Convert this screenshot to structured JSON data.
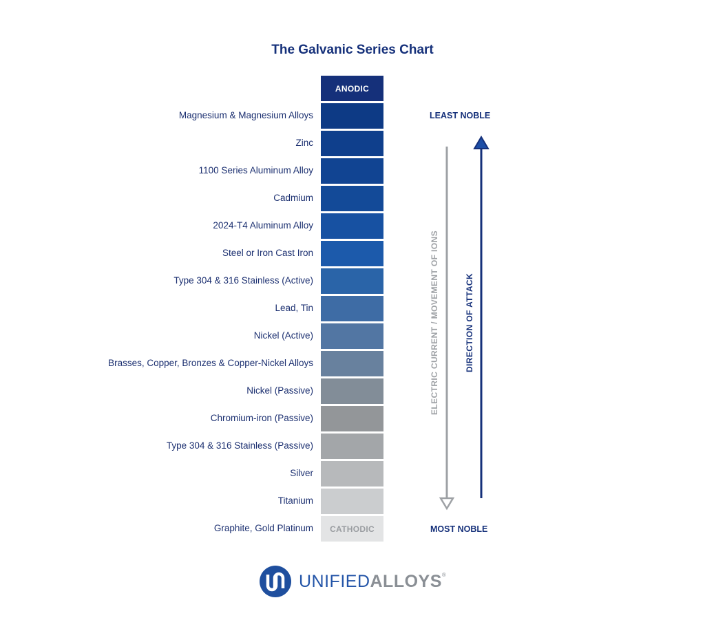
{
  "title": "The Galvanic Series Chart",
  "anodic_label": "ANODIC",
  "cathodic_label": "CATHODIC",
  "least_noble": "LEAST NOBLE",
  "most_noble": "MOST NOBLE",
  "current_label": "ELECTRIC CURRENT / MOVEMENT OF IONS",
  "attack_label": "DIRECTION OF ATTACK",
  "metals": [
    {
      "name": "Magnesium & Magnesium Alloys",
      "color": "#0d3a85"
    },
    {
      "name": "Zinc",
      "color": "#0f3f8c"
    },
    {
      "name": "1100 Series Aluminum Alloy",
      "color": "#114492"
    },
    {
      "name": "Cadmium",
      "color": "#134a98"
    },
    {
      "name": "2024-T4 Aluminum Alloy",
      "color": "#1751a2"
    },
    {
      "name": "Steel or Iron Cast Iron",
      "color": "#1c5aab"
    },
    {
      "name": "Type 304 & 316 Stainless (Active)",
      "color": "#2a64a8"
    },
    {
      "name": "Lead, Tin",
      "color": "#3e6ca5"
    },
    {
      "name": "Nickel (Active)",
      "color": "#5276a3"
    },
    {
      "name": "Brasses, Copper, Bronzes & Copper-Nickel Alloys",
      "color": "#68819e"
    },
    {
      "name": "Nickel (Passive)",
      "color": "#828d98"
    },
    {
      "name": "Chromium-iron (Passive)",
      "color": "#939699"
    },
    {
      "name": "Type 304 & 316 Stainless (Passive)",
      "color": "#a3a6a9"
    },
    {
      "name": "Silver",
      "color": "#b7b9bb"
    },
    {
      "name": "Titanium",
      "color": "#cbcdcf"
    },
    {
      "name": "Graphite, Gold Platinum",
      "color": "#e3e4e5"
    }
  ],
  "anodic_color": "#15307a",
  "logo": {
    "word_a": "UNIFIED",
    "word_b": "ALLOYS",
    "reg": "®"
  }
}
